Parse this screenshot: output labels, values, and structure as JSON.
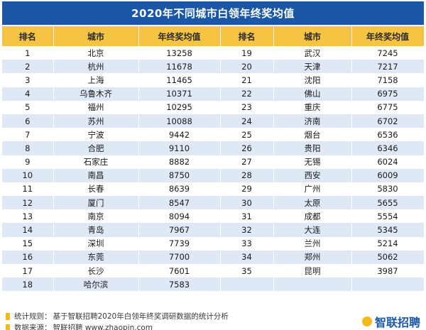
{
  "title": "2020年不同城市白领年终奖均值",
  "table": {
    "headers": [
      "排名",
      "城市",
      "年终奖均值",
      "排名",
      "城市",
      "年终奖均值"
    ],
    "left": [
      {
        "rank": "1",
        "city": "北京",
        "value": "13258"
      },
      {
        "rank": "2",
        "city": "杭州",
        "value": "11678"
      },
      {
        "rank": "3",
        "city": "上海",
        "value": "11465"
      },
      {
        "rank": "4",
        "city": "乌鲁木齐",
        "value": "10371"
      },
      {
        "rank": "5",
        "city": "福州",
        "value": "10295"
      },
      {
        "rank": "6",
        "city": "苏州",
        "value": "10088"
      },
      {
        "rank": "7",
        "city": "宁波",
        "value": "9442"
      },
      {
        "rank": "8",
        "city": "合肥",
        "value": "9110"
      },
      {
        "rank": "9",
        "city": "石家庄",
        "value": "8882"
      },
      {
        "rank": "10",
        "city": "南昌",
        "value": "8750"
      },
      {
        "rank": "11",
        "city": "长春",
        "value": "8639"
      },
      {
        "rank": "12",
        "city": "厦门",
        "value": "8547"
      },
      {
        "rank": "13",
        "city": "南京",
        "value": "8094"
      },
      {
        "rank": "14",
        "city": "青岛",
        "value": "7967"
      },
      {
        "rank": "15",
        "city": "深圳",
        "value": "7739"
      },
      {
        "rank": "16",
        "city": "东莞",
        "value": "7700"
      },
      {
        "rank": "17",
        "city": "长沙",
        "value": "7601"
      },
      {
        "rank": "18",
        "city": "哈尔滨",
        "value": "7583"
      }
    ],
    "right": [
      {
        "rank": "19",
        "city": "武汉",
        "value": "7245"
      },
      {
        "rank": "20",
        "city": "天津",
        "value": "7217"
      },
      {
        "rank": "21",
        "city": "沈阳",
        "value": "7158"
      },
      {
        "rank": "22",
        "city": "佛山",
        "value": "6975"
      },
      {
        "rank": "23",
        "city": "重庆",
        "value": "6775"
      },
      {
        "rank": "24",
        "city": "济南",
        "value": "6702"
      },
      {
        "rank": "25",
        "city": "烟台",
        "value": "6536"
      },
      {
        "rank": "26",
        "city": "贵阳",
        "value": "6346"
      },
      {
        "rank": "27",
        "city": "无锡",
        "value": "6024"
      },
      {
        "rank": "28",
        "city": "西安",
        "value": "6009"
      },
      {
        "rank": "29",
        "city": "广州",
        "value": "5830"
      },
      {
        "rank": "30",
        "city": "太原",
        "value": "5655"
      },
      {
        "rank": "31",
        "city": "成都",
        "value": "5554"
      },
      {
        "rank": "32",
        "city": "大连",
        "value": "5345"
      },
      {
        "rank": "33",
        "city": "兰州",
        "value": "5214"
      },
      {
        "rank": "34",
        "city": "郑州",
        "value": "5062"
      },
      {
        "rank": "35",
        "city": "昆明",
        "value": "3987"
      }
    ]
  },
  "footer": {
    "rule_label": "统计规则：",
    "rule_text": "基于智联招聘2020年白领年终奖调研数据的统计分析",
    "source_label": "数据来源：",
    "source_text": "智联招聘 www.zhaopin.com"
  },
  "brand": "智联招聘",
  "colors": {
    "title_bg": "#1a58a7",
    "header_bg": "#f6c443",
    "stripe": "#dfe9f6",
    "marker": "#f6b81f"
  }
}
